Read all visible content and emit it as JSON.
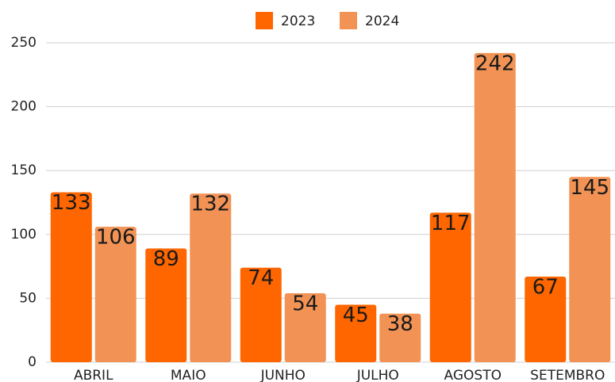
{
  "chart_data": {
    "type": "bar",
    "categories": [
      "ABRIL",
      "MAIO",
      "JUNHO",
      "JULHO",
      "AGOSTO",
      "SETEMBRO"
    ],
    "series": [
      {
        "name": "2023",
        "color": "#ff6600",
        "values": [
          133,
          89,
          74,
          45,
          117,
          67
        ]
      },
      {
        "name": "2024",
        "color": "#f29355",
        "values": [
          106,
          132,
          54,
          38,
          242,
          145
        ]
      }
    ],
    "ylim": [
      0,
      250
    ],
    "yticks": [
      0,
      50,
      100,
      150,
      200,
      250
    ],
    "grid": true,
    "legend": "top"
  }
}
